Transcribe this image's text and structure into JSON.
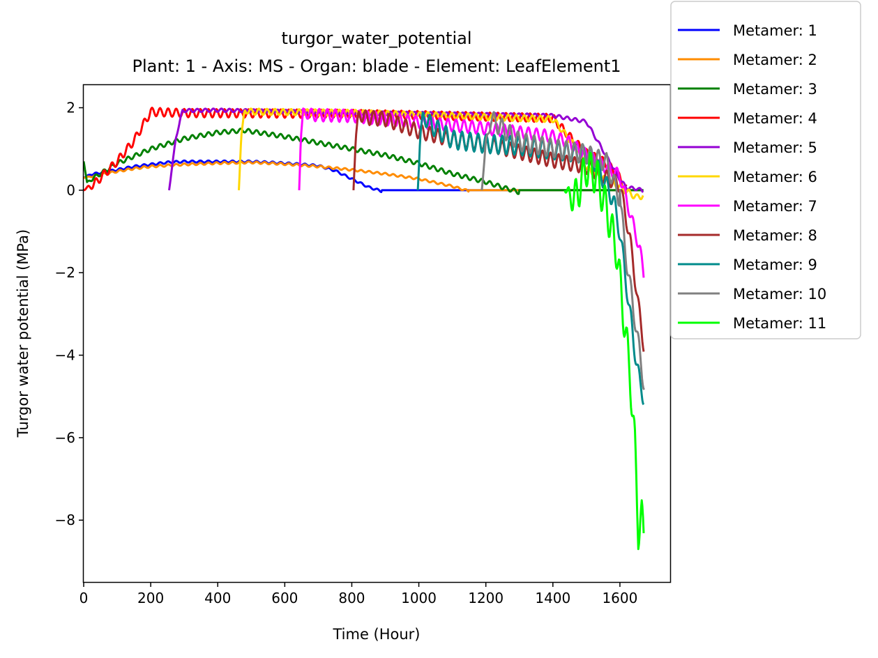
{
  "chart_data": {
    "type": "line",
    "title": "turgor_water_potential",
    "subtitle": "Plant: 1 - Axis: MS - Organ: blade - Element: LeafElement1",
    "xlabel": "Time (Hour)",
    "ylabel": "Turgor water potential (MPa)",
    "xlim": [
      0,
      1750
    ],
    "ylim": [
      -9.5,
      2.55
    ],
    "xticks": [
      0,
      200,
      400,
      600,
      800,
      1000,
      1200,
      1400,
      1600
    ],
    "yticks": [
      -8,
      -6,
      -4,
      -2,
      0,
      2
    ],
    "grid": false,
    "legend_position": "upper-right-outside",
    "series": [
      {
        "name": "Metamer: 1",
        "color": "#0000ff",
        "x": [
          0,
          20,
          50,
          100,
          150,
          200,
          250,
          300,
          400,
          500,
          600,
          700,
          750,
          800,
          850,
          890,
          1000,
          1200,
          1400,
          1600,
          1670
        ],
        "y": [
          0.3,
          0.4,
          0.45,
          0.52,
          0.6,
          0.65,
          0.7,
          0.72,
          0.72,
          0.72,
          0.68,
          0.62,
          0.5,
          0.3,
          0.1,
          0,
          0,
          0,
          0,
          0,
          0
        ],
        "osc": 0.05,
        "period": 24
      },
      {
        "name": "Metamer: 2",
        "color": "#ff8c00",
        "x": [
          0,
          20,
          50,
          100,
          150,
          200,
          300,
          400,
          500,
          600,
          700,
          800,
          900,
          1000,
          1100,
          1150,
          1300,
          1400,
          1600,
          1670
        ],
        "y": [
          0.3,
          0.35,
          0.4,
          0.48,
          0.55,
          0.6,
          0.65,
          0.68,
          0.7,
          0.66,
          0.6,
          0.52,
          0.42,
          0.3,
          0.12,
          0,
          0,
          0,
          0,
          0
        ],
        "osc": 0.05,
        "period": 24
      },
      {
        "name": "Metamer: 3",
        "color": "#008000",
        "x": [
          0,
          10,
          30,
          100,
          200,
          300,
          400,
          480,
          600,
          700,
          800,
          900,
          1000,
          1100,
          1200,
          1250,
          1300,
          1400,
          1600,
          1670
        ],
        "y": [
          0.7,
          0.2,
          0.35,
          0.7,
          1.05,
          1.3,
          1.45,
          1.5,
          1.35,
          1.2,
          1.05,
          0.9,
          0.7,
          0.45,
          0.25,
          0.12,
          0,
          0,
          0,
          0
        ],
        "osc": 0.1,
        "period": 24
      },
      {
        "name": "Metamer: 4",
        "color": "#ff0000",
        "x": [
          0,
          50,
          100,
          150,
          200,
          300,
          800,
          1000,
          1400,
          1450,
          1500,
          1550,
          1580,
          1600,
          1620
        ],
        "y": [
          0,
          0.4,
          0.8,
          1.3,
          2.0,
          1.97,
          1.95,
          1.92,
          1.85,
          1.4,
          1.0,
          0.8,
          0.6,
          0.4,
          0.1
        ],
        "osc": 0.2,
        "period": 24
      },
      {
        "name": "Metamer: 5",
        "color": "#9400d3",
        "x": [
          255,
          275,
          295,
          400,
          600,
          800,
          1000,
          1400,
          1500,
          1600,
          1620,
          1650,
          1670
        ],
        "y": [
          0,
          1.3,
          1.97,
          1.98,
          1.95,
          1.92,
          1.9,
          1.85,
          1.7,
          0.3,
          0.1,
          0.08,
          0.02
        ],
        "osc": 0.08,
        "period": 24
      },
      {
        "name": "Metamer: 6",
        "color": "#ffd700",
        "x": [
          463,
          470,
          480,
          600,
          800,
          1000,
          1200,
          1400,
          1480,
          1500,
          1600,
          1630,
          1650,
          1670
        ],
        "y": [
          0,
          1.3,
          1.98,
          1.97,
          1.95,
          1.9,
          1.85,
          1.8,
          1.0,
          0.6,
          0.15,
          0.0,
          -0.1,
          -0.05
        ],
        "osc": 0.15,
        "period": 24
      },
      {
        "name": "Metamer: 7",
        "color": "#ff00ff",
        "x": [
          643,
          648,
          655,
          800,
          1000,
          1200,
          1400,
          1450,
          1500,
          1600,
          1620,
          1640,
          1660,
          1672
        ],
        "y": [
          0,
          1.3,
          1.98,
          1.95,
          1.8,
          1.65,
          1.45,
          1.3,
          1.0,
          0.5,
          -0.1,
          -0.7,
          -1.3,
          -1.95
        ],
        "osc": 0.3,
        "period": 24
      },
      {
        "name": "Metamer: 8",
        "color": "#a52a2a",
        "x": [
          805,
          812,
          820,
          900,
          1000,
          1100,
          1200,
          1300,
          1400,
          1500,
          1600,
          1630,
          1650,
          1672
        ],
        "y": [
          0,
          1.3,
          1.95,
          1.9,
          1.6,
          1.4,
          1.3,
          1.1,
          0.9,
          0.75,
          0.3,
          -1.0,
          -2.3,
          -3.65
        ],
        "osc": 0.35,
        "period": 24
      },
      {
        "name": "Metamer: 9",
        "color": "#008b8b",
        "x": [
          997,
          1004,
          1012,
          1100,
          1200,
          1300,
          1400,
          1500,
          1520,
          1580,
          1600,
          1640,
          1660,
          1672
        ],
        "y": [
          0,
          1.3,
          1.95,
          1.45,
          1.35,
          1.3,
          1.2,
          1.1,
          1.0,
          0.0,
          -0.8,
          -3.4,
          -4.5,
          -4.8
        ],
        "osc": 0.45,
        "period": 24
      },
      {
        "name": "Metamer: 10",
        "color": "#808080",
        "x": [
          1188,
          1200,
          1215,
          1300,
          1400,
          1500,
          1560,
          1600,
          1620,
          1650,
          1672
        ],
        "y": [
          0,
          1.2,
          1.95,
          1.4,
          1.25,
          1.1,
          0.9,
          0.0,
          -1.5,
          -3.2,
          -4.5
        ],
        "osc": 0.45,
        "period": 24
      },
      {
        "name": "Metamer: 11",
        "color": "#00ff00",
        "x": [
          1435,
          1450,
          1470,
          1500,
          1530,
          1560,
          1590,
          1610,
          1630,
          1645,
          1655,
          1665,
          1672
        ],
        "y": [
          0,
          0.1,
          0.3,
          1.0,
          0.8,
          0.0,
          -1.0,
          -2.5,
          -4.0,
          -5.8,
          -7.8,
          -7.5,
          -8.0
        ],
        "osc": 0.9,
        "period": 22
      }
    ]
  }
}
